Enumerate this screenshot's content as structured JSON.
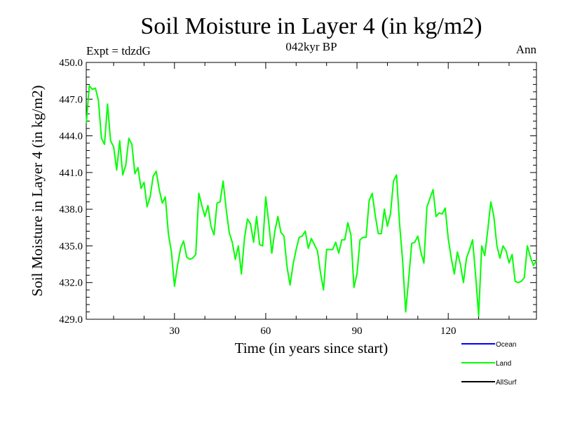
{
  "chart_data": {
    "type": "line",
    "title": "Soil Moisture in Layer 4 (in kg/m2)",
    "subtitle": "042kyr BP",
    "left_note": "Expt = tdzdG",
    "right_note": "Ann",
    "xlabel": "Time (in years since start)",
    "ylabel": "Soil Moisture in Layer 4 (in kg/m2)",
    "xlim": [
      1,
      149
    ],
    "ylim": [
      429.0,
      450.0
    ],
    "xticks": [
      30,
      60,
      90,
      120
    ],
    "xtick_labels": [
      "30",
      "60",
      "90",
      "120"
    ],
    "yticks": [
      429.0,
      432.0,
      435.0,
      438.0,
      441.0,
      444.0,
      447.0,
      450.0
    ],
    "ytick_labels": [
      "429.0",
      "432.0",
      "435.0",
      "438.0",
      "441.0",
      "444.0",
      "447.0",
      "450.0"
    ],
    "legend": [
      {
        "name": "Ocean",
        "color": "#0000ff"
      },
      {
        "name": "Land",
        "color": "#00ff00"
      },
      {
        "name": "AllSurf",
        "color": "#000000"
      }
    ],
    "series": [
      {
        "name": "Land",
        "color": "#00ff00",
        "x": [
          1,
          2,
          3,
          4,
          5,
          6,
          7,
          8,
          9,
          10,
          11,
          12,
          13,
          14,
          15,
          16,
          17,
          18,
          19,
          20,
          21,
          22,
          23,
          24,
          25,
          26,
          27,
          28,
          29,
          30,
          31,
          32,
          33,
          34,
          35,
          36,
          37,
          38,
          39,
          40,
          41,
          42,
          43,
          44,
          45,
          46,
          47,
          48,
          49,
          50,
          51,
          52,
          53,
          54,
          55,
          56,
          57,
          58,
          59,
          60,
          61,
          62,
          63,
          64,
          65,
          66,
          67,
          68,
          69,
          70,
          71,
          72,
          73,
          74,
          75,
          76,
          77,
          78,
          79,
          80,
          81,
          82,
          83,
          84,
          85,
          86,
          87,
          88,
          89,
          90,
          91,
          92,
          93,
          94,
          95,
          96,
          97,
          98,
          99,
          100,
          101,
          102,
          103,
          104,
          105,
          106,
          107,
          108,
          109,
          110,
          111,
          112,
          113,
          114,
          115,
          116,
          117,
          118,
          119,
          120,
          121,
          122,
          123,
          124,
          125,
          126,
          127,
          128,
          129,
          130,
          131,
          132,
          133,
          134,
          135,
          136,
          137,
          138,
          139,
          140,
          141,
          142,
          143,
          144,
          145,
          146,
          147,
          148,
          149
        ],
        "values": [
          445.0,
          448.1,
          447.8,
          447.9,
          446.9,
          443.8,
          443.3,
          446.6,
          443.6,
          443.1,
          441.2,
          443.6,
          440.8,
          441.6,
          443.8,
          443.3,
          440.9,
          441.4,
          439.7,
          440.2,
          438.2,
          439.0,
          440.7,
          441.1,
          439.6,
          438.5,
          439.0,
          436.0,
          434.5,
          431.7,
          433.4,
          434.8,
          435.4,
          434.1,
          433.9,
          434.0,
          434.3,
          439.3,
          438.3,
          437.4,
          438.3,
          436.6,
          435.9,
          438.5,
          438.6,
          440.3,
          438.0,
          436.1,
          435.3,
          433.9,
          435.0,
          432.7,
          435.6,
          437.2,
          436.8,
          435.3,
          437.4,
          435.1,
          435.0,
          439.0,
          436.9,
          434.4,
          436.2,
          437.4,
          436.1,
          435.8,
          433.3,
          431.8,
          433.5,
          434.7,
          435.7,
          435.8,
          436.2,
          434.8,
          435.6,
          435.1,
          434.6,
          432.8,
          431.4,
          434.7,
          434.7,
          434.7,
          435.3,
          434.4,
          435.5,
          435.5,
          436.9,
          435.9,
          431.6,
          432.7,
          435.5,
          435.7,
          435.7,
          438.7,
          439.3,
          437.5,
          436.0,
          436.0,
          438.0,
          436.6,
          437.6,
          440.3,
          440.8,
          436.8,
          433.8,
          429.6,
          432.3,
          435.2,
          435.3,
          435.8,
          434.5,
          433.6,
          438.2,
          438.9,
          439.6,
          437.4,
          437.7,
          437.6,
          438.1,
          435.6,
          434.0,
          432.7,
          434.5,
          433.5,
          432.0,
          434.0,
          434.7,
          435.5,
          432.6,
          429.3,
          435.0,
          434.2,
          436.3,
          438.6,
          437.4,
          435.0,
          434.0,
          435.0,
          434.6,
          433.6,
          434.3,
          432.1,
          432.0,
          432.1,
          432.4,
          435.0,
          434.1,
          433.4,
          433.8
        ]
      }
    ]
  }
}
